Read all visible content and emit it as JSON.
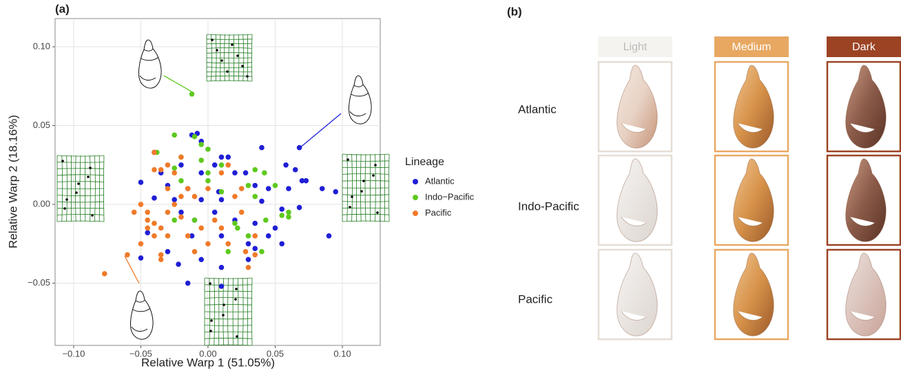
{
  "chart_data": {
    "type": "scatter",
    "panel_label": "(a)",
    "x_label": "Relative Warp 1 (51.05%)",
    "y_label": "Relative Warp 2 (18.16%)",
    "xlim": [
      -0.1138,
      0.1282
    ],
    "ylim": [
      -0.0895,
      0.1179
    ],
    "xticks": [
      {
        "value": -0.1,
        "label": "−0.10"
      },
      {
        "value": -0.05,
        "label": "−0.05"
      },
      {
        "value": 0,
        "label": "0.00"
      },
      {
        "value": 0.05,
        "label": "0.05"
      },
      {
        "value": 0.1,
        "label": "0.10"
      }
    ],
    "yticks": [
      {
        "value": -0.05,
        "label": "−0.05"
      },
      {
        "value": 0,
        "label": "0.00"
      },
      {
        "value": 0.05,
        "label": "0.05"
      },
      {
        "value": 0.1,
        "label": "0.10"
      }
    ],
    "grid": true,
    "legend_title": "Lineage",
    "series": [
      {
        "name": "Atlantic",
        "color": "#1f1fd6",
        "x": [
          -0.012,
          -0.008,
          -0.005,
          -0.04,
          0.04,
          0.068,
          0.01,
          -0.02,
          0.005,
          0.015,
          -0.035,
          -0.005,
          0.02,
          0.058,
          0.065,
          0.07,
          0.073,
          -0.05,
          -0.03,
          -0.015,
          0.008,
          0.028,
          0.035,
          0.045,
          0.06,
          0.085,
          0.095,
          -0.04,
          -0.025,
          -0.005,
          0.01,
          0.04,
          0.055,
          0.068,
          -0.02,
          -0.01,
          0.005,
          0.02,
          0.035,
          0.05,
          -0.045,
          -0.012,
          0.01,
          0.03,
          0.055,
          0.09,
          0.045,
          -0.05,
          -0.022,
          -0.005,
          0.01,
          0.03,
          -0.015,
          0.01,
          0.035,
          -0.03
        ],
        "y": [
          0.044,
          0.045,
          0.04,
          0.033,
          0.036,
          0.036,
          0.03,
          0.025,
          0.025,
          0.03,
          0.02,
          0.02,
          0.02,
          0.025,
          0.022,
          0.015,
          0.015,
          0.014,
          0.012,
          0.01,
          0.008,
          0.02,
          0.012,
          0.01,
          0.01,
          0.01,
          0.008,
          0.004,
          0.003,
          0.003,
          0.003,
          0.002,
          -0.003,
          -0.002,
          -0.005,
          -0.01,
          -0.005,
          -0.01,
          -0.012,
          -0.015,
          -0.018,
          -0.02,
          -0.02,
          -0.025,
          -0.025,
          -0.02,
          -0.02,
          -0.034,
          -0.038,
          -0.035,
          -0.04,
          -0.035,
          -0.05,
          -0.052,
          -0.028,
          -0.03
        ]
      },
      {
        "name": "Indo−Pacific",
        "color": "#5ec91e",
        "x": [
          -0.012,
          -0.025,
          -0.01,
          -0.005,
          0.0,
          -0.038,
          -0.02,
          -0.005,
          0.01,
          0.035,
          -0.025,
          0.042,
          -0.02,
          0.0,
          0.03,
          0.05,
          0.01,
          0.035,
          0.06,
          0.055,
          0.06,
          0.02,
          0.043,
          0.022,
          -0.01,
          0.04,
          0.015,
          -0.025,
          0.0,
          0.03
        ],
        "y": [
          0.07,
          0.044,
          0.043,
          0.038,
          0.035,
          0.033,
          0.03,
          0.028,
          0.025,
          0.022,
          0.023,
          0.02,
          0.015,
          0.015,
          0.012,
          0.012,
          0.008,
          0.005,
          -0.005,
          -0.007,
          -0.008,
          -0.012,
          -0.01,
          -0.015,
          -0.01,
          -0.03,
          -0.03,
          -0.01,
          0.02,
          -0.02
        ]
      },
      {
        "name": "Pacific",
        "color": "#f07a29",
        "x": [
          -0.077,
          -0.06,
          -0.04,
          -0.04,
          -0.035,
          -0.05,
          -0.045,
          -0.04,
          -0.035,
          -0.04,
          -0.05,
          -0.035,
          -0.035,
          -0.045,
          -0.03,
          -0.03,
          -0.025,
          -0.02,
          -0.02,
          -0.015,
          -0.015,
          -0.01,
          -0.005,
          0.0,
          0.005,
          0.01,
          0.01,
          0.015,
          0.02,
          0.025,
          0.025,
          0.028,
          0.035,
          0.035,
          -0.03,
          -0.025,
          0.015,
          -0.055,
          -0.01,
          0.0,
          -0.045,
          -0.03,
          -0.02,
          0.03
        ],
        "y": [
          -0.044,
          -0.032,
          0.033,
          0.022,
          0.022,
          0.0,
          -0.005,
          -0.012,
          -0.015,
          -0.02,
          -0.025,
          -0.032,
          -0.035,
          -0.01,
          0.01,
          -0.005,
          0.0,
          0.005,
          -0.008,
          0.01,
          -0.02,
          0.005,
          -0.015,
          0.01,
          -0.01,
          0.02,
          -0.015,
          -0.025,
          0.005,
          0.01,
          -0.005,
          -0.03,
          -0.032,
          -0.02,
          0.025,
          0.02,
          0.025,
          -0.005,
          -0.03,
          -0.025,
          -0.015,
          -0.02,
          0.03,
          -0.04
        ]
      }
    ]
  },
  "panel_b": {
    "label": "(b)",
    "columns": [
      "Light",
      "Medium",
      "Dark"
    ],
    "rows": [
      "Atlantic",
      "Indo-Pacific",
      "Pacific"
    ]
  }
}
